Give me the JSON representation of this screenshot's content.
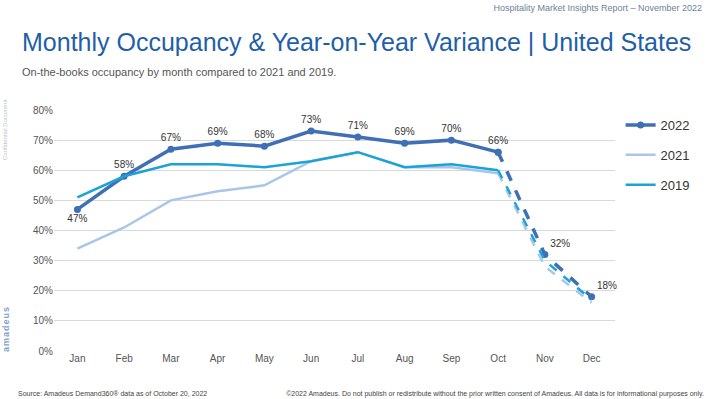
{
  "header": "Hospitality Market Insights Report – November 2022",
  "side_note": "Confidential Document",
  "logo": "amadeus",
  "source": "Source: Amadeus Demand360® data as of October 20, 2022",
  "copyright": "©2022 Amadeus. Do not publish or redistribute without the prior written consent of Amadeus. All data is for informational purposes only.",
  "chart_data": {
    "type": "line",
    "title": "Monthly Occupancy & Year-on-Year Variance | United States",
    "subtitle": "On-the-books occupancy by month compared to 2021 and 2019.",
    "categories": [
      "Jan",
      "Feb",
      "Mar",
      "Apr",
      "May",
      "Jun",
      "Jul",
      "Aug",
      "Sep",
      "Oct",
      "Nov",
      "Dec"
    ],
    "series": [
      {
        "name": "2022",
        "color": "#3f6fb5",
        "line_style": "solid",
        "marker": "circle",
        "values": [
          47,
          58,
          67,
          69,
          68,
          73,
          71,
          69,
          70,
          66,
          null,
          null
        ],
        "value_labels": [
          "47%",
          "58%",
          "67%",
          "69%",
          "68%",
          "73%",
          "71%",
          "69%",
          "70%",
          "66%",
          null,
          null
        ]
      },
      {
        "name": "2022",
        "color": "#3f6fb5",
        "line_style": "dashed",
        "marker": "circle",
        "values": [
          null,
          null,
          null,
          null,
          null,
          null,
          null,
          null,
          null,
          66,
          32,
          18
        ],
        "value_labels": [
          null,
          null,
          null,
          null,
          null,
          null,
          null,
          null,
          null,
          null,
          "32%",
          "18%"
        ]
      },
      {
        "name": "2021",
        "color": "#a9c6e8",
        "line_style": "solid",
        "marker": "none",
        "values": [
          34,
          41,
          50,
          53,
          55,
          63,
          66,
          61,
          61,
          59,
          null,
          null
        ]
      },
      {
        "name": "2021",
        "color": "#a9c6e8",
        "line_style": "dashed",
        "marker": "none",
        "values": [
          null,
          null,
          null,
          null,
          null,
          null,
          null,
          null,
          null,
          59,
          28,
          16
        ]
      },
      {
        "name": "2019",
        "color": "#1ba3d8",
        "line_style": "solid",
        "marker": "none",
        "values": [
          51,
          58,
          62,
          62,
          61,
          63,
          66,
          61,
          62,
          60,
          null,
          null
        ]
      },
      {
        "name": "2019",
        "color": "#1ba3d8",
        "line_style": "dashed",
        "marker": "none",
        "values": [
          null,
          null,
          null,
          null,
          null,
          null,
          null,
          null,
          null,
          60,
          30,
          17
        ]
      }
    ],
    "ylim": [
      0,
      80
    ],
    "yticks": [
      {
        "value": 0,
        "label": "0%"
      },
      {
        "value": 10,
        "label": "10%"
      },
      {
        "value": 20,
        "label": "20%"
      },
      {
        "value": 30,
        "label": "30%"
      },
      {
        "value": 40,
        "label": "40%"
      },
      {
        "value": 50,
        "label": "50%"
      },
      {
        "value": 60,
        "label": "60%"
      },
      {
        "value": 70,
        "label": "70%"
      },
      {
        "value": 80,
        "label": "80%"
      }
    ],
    "grid": true,
    "legend": "top right",
    "data_labels": true
  }
}
